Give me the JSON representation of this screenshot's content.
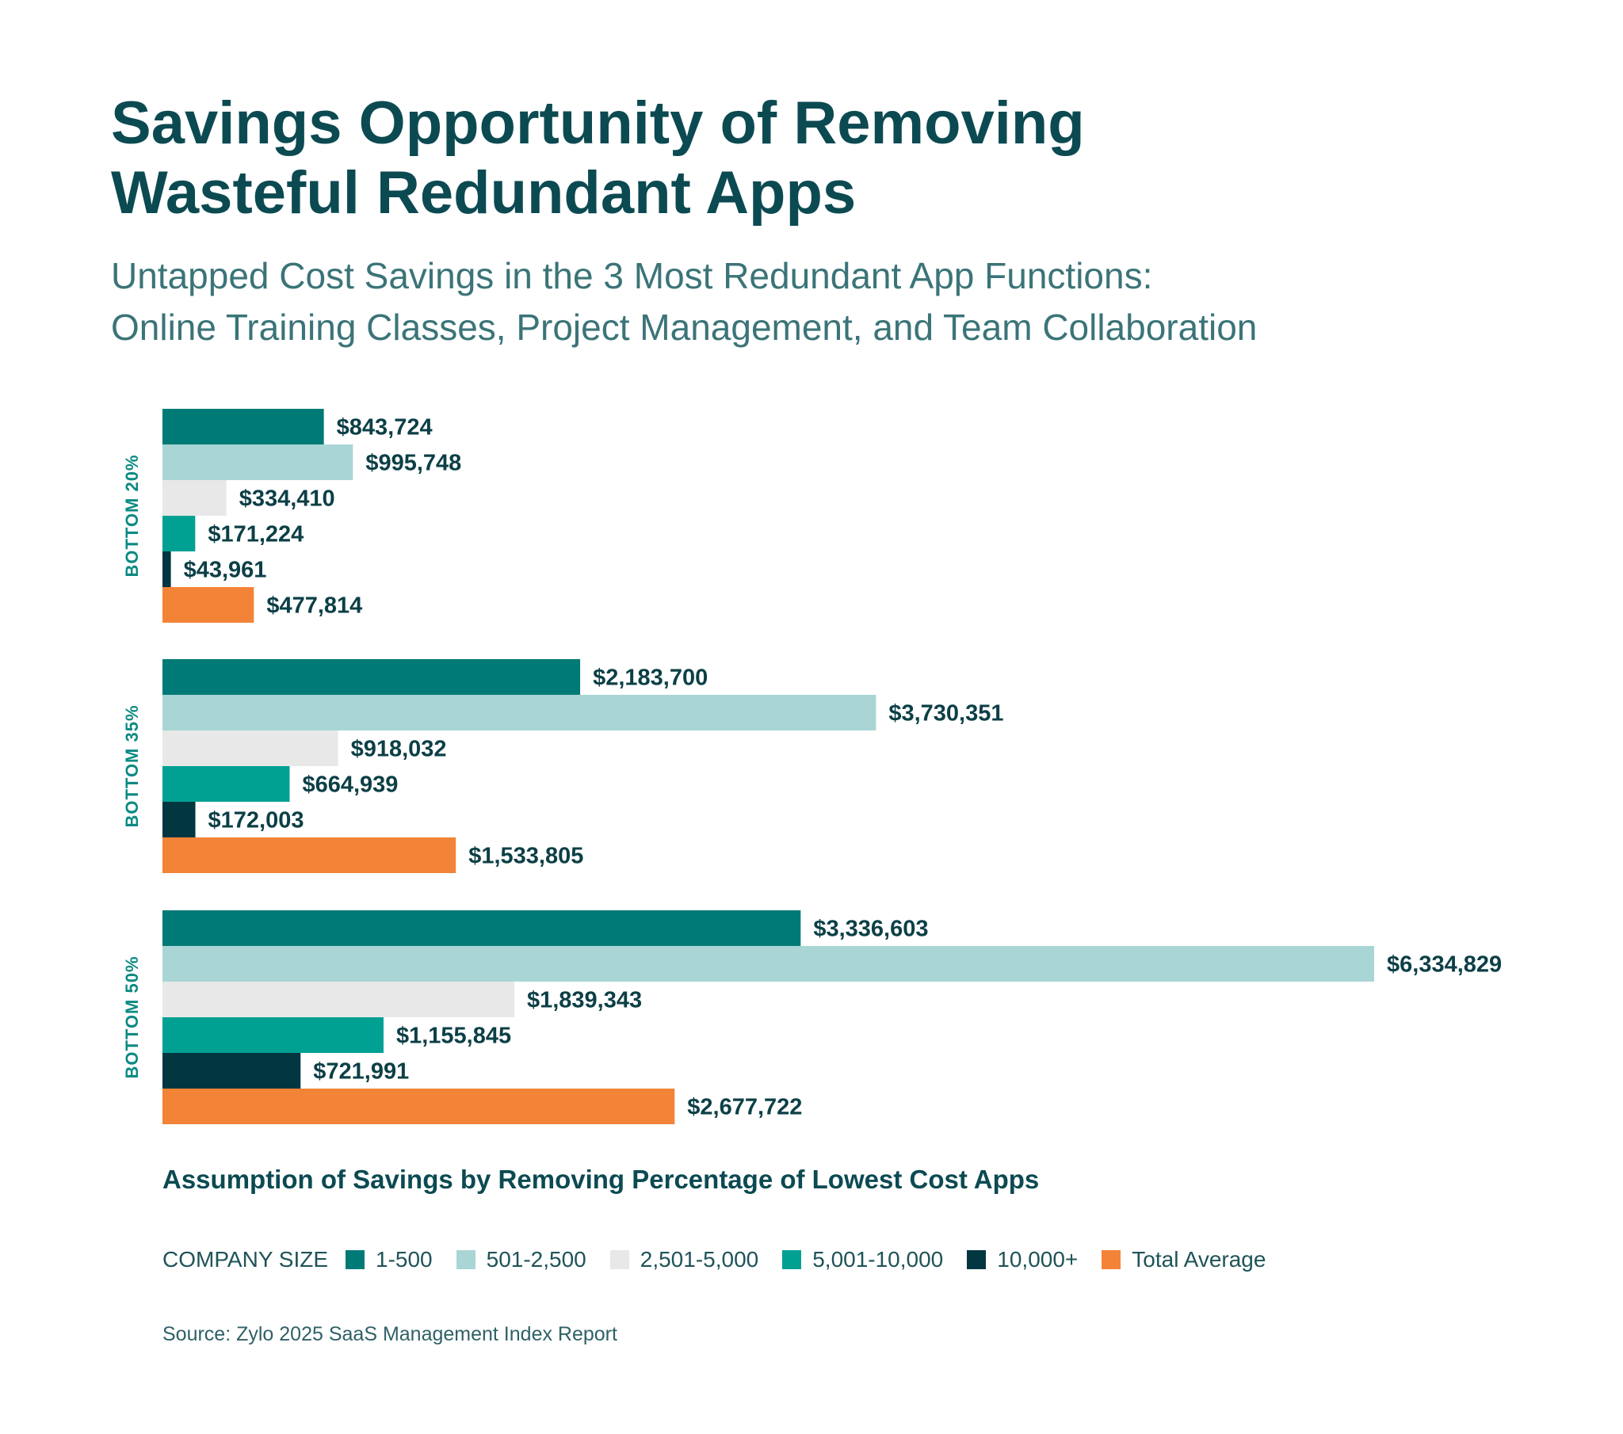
{
  "title": {
    "line1": "Savings Opportunity of Removing",
    "line2": "Wasteful Redundant Apps"
  },
  "subtitle": {
    "line1": "Untapped Cost Savings in the 3 Most Redundant App Functions:",
    "line2": "Online Training Classes, Project Management, and Team Collaboration"
  },
  "chart_data": {
    "type": "bar",
    "orientation": "horizontal",
    "title": "Savings Opportunity of Removing Wasteful Redundant Apps",
    "xlabel": "Assumption of Savings by Removing Percentage of Lowest Cost Apps",
    "ylabel": "",
    "categories": [
      "BOTTOM 20%",
      "BOTTOM 35%",
      "BOTTOM 50%"
    ],
    "legend_title": "COMPANY SIZE",
    "legend_position": "bottom",
    "grid": false,
    "xlim": [
      0,
      6334829
    ],
    "series": [
      {
        "name": "1-500",
        "color": "#007a76",
        "values": [
          843724,
          2183700,
          3336603
        ],
        "labels": [
          "$843,724",
          "$2,183,700",
          "$3,336,603"
        ]
      },
      {
        "name": "501-2,500",
        "color": "#a9d5d5",
        "values": [
          995748,
          3730351,
          6334829
        ],
        "labels": [
          "$995,748",
          "$3,730,351",
          "$6,334,829"
        ]
      },
      {
        "name": "2,501-5,000",
        "color": "#e8e8e8",
        "values": [
          334410,
          918032,
          1839343
        ],
        "labels": [
          "$334,410",
          "$918,032",
          "$1,839,343"
        ]
      },
      {
        "name": "5,001-10,000",
        "color": "#00a093",
        "values": [
          171224,
          664939,
          1155845
        ],
        "labels": [
          "$171,224",
          "$664,939",
          "$1,155,845"
        ]
      },
      {
        "name": "10,000+",
        "color": "#023640",
        "values": [
          43961,
          172003,
          721991
        ],
        "labels": [
          "$43,961",
          "$172,003",
          "$721,991"
        ]
      },
      {
        "name": "Total Average",
        "color": "#f38337",
        "values": [
          477814,
          1533805,
          2677722
        ],
        "labels": [
          "$477,814",
          "$1,533,805",
          "$2,677,722"
        ]
      }
    ]
  },
  "source": "Source: Zylo 2025 SaaS Management Index Report",
  "colors": {
    "title": "#0c4a52",
    "label": "#0c3f46",
    "group_label": "#0a8a82"
  }
}
